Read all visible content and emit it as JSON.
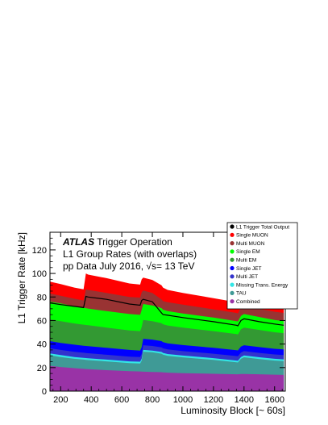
{
  "chart_data": {
    "type": "area",
    "xlabel": "Luminosity Block [~ 60s]",
    "ylabel": "L1 Trigger Rate [kHz]",
    "xlim": [
      130,
      1670
    ],
    "ylim": [
      0,
      135
    ],
    "x_ticks": [
      200,
      400,
      600,
      800,
      1000,
      1200,
      1400,
      1600
    ],
    "y_ticks": [
      0,
      20,
      40,
      60,
      80,
      100,
      120
    ],
    "grid": false,
    "legend_position": "top-right",
    "annotation": {
      "brand": "ATLAS",
      "line1_rest": " Trigger Operation",
      "line2": "L1 Group Rates (with overlaps)",
      "line3": "pp Data July 2016, √s= 13 TeV"
    },
    "x": [
      130,
      200,
      290,
      350,
      365,
      380,
      500,
      650,
      720,
      730,
      740,
      800,
      860,
      870,
      900,
      1000,
      1200,
      1350,
      1360,
      1380,
      1400,
      1500,
      1600,
      1660
    ],
    "series": [
      {
        "name": "Combined",
        "color": "#9933a6",
        "values": [
          21.5,
          20.5,
          19.5,
          18.9,
          18.8,
          18.7,
          17.8,
          16.9,
          16.7,
          16.6,
          16.5,
          16.3,
          16.1,
          16.0,
          15.7,
          15.3,
          14.7,
          14.3,
          14.3,
          14.5,
          14.6,
          14.3,
          14.0,
          13.8
        ]
      },
      {
        "name": "TAU",
        "color": "#3f9a96",
        "values": [
          30.5,
          29.0,
          27.5,
          26.8,
          26.6,
          26.4,
          25.3,
          23.8,
          23.5,
          26.0,
          33.5,
          33.0,
          31.8,
          31.0,
          30.0,
          28.7,
          26.5,
          24.5,
          24.3,
          27.5,
          28.8,
          27.3,
          26.0,
          25.5
        ]
      },
      {
        "name": "Missing Trans. Energy",
        "color": "#33e6e6",
        "values": [
          32.0,
          30.6,
          29.0,
          28.3,
          28.1,
          27.9,
          26.8,
          25.3,
          25.0,
          27.6,
          35.0,
          34.5,
          33.3,
          32.5,
          31.5,
          30.2,
          28.0,
          26.0,
          25.8,
          29.0,
          30.3,
          28.8,
          27.5,
          27.0
        ]
      },
      {
        "name": "Multi JET",
        "color": "#3333cc",
        "values": [
          36.5,
          35.0,
          33.4,
          32.6,
          32.4,
          32.2,
          30.9,
          29.3,
          28.9,
          31.5,
          39.0,
          38.4,
          37.2,
          36.4,
          35.4,
          34.0,
          31.8,
          29.8,
          29.6,
          32.8,
          34.0,
          32.5,
          31.2,
          30.7
        ]
      },
      {
        "name": "Single JET",
        "color": "#0000ff",
        "values": [
          42.5,
          41.0,
          39.5,
          38.6,
          38.4,
          38.2,
          36.8,
          35.0,
          34.5,
          37.3,
          44.5,
          43.8,
          42.5,
          41.6,
          40.6,
          39.1,
          36.8,
          34.8,
          34.6,
          37.8,
          39.0,
          37.4,
          36.0,
          35.5
        ]
      },
      {
        "name": "Multi EM",
        "color": "#339933",
        "values": [
          61.0,
          59.5,
          57.5,
          56.5,
          56.2,
          56.0,
          54.0,
          51.5,
          51.0,
          54.5,
          60.5,
          59.5,
          57.8,
          56.8,
          55.8,
          54.0,
          51.0,
          48.5,
          48.2,
          52.5,
          54.0,
          52.0,
          50.0,
          49.3
        ]
      },
      {
        "name": "Single EM",
        "color": "#00ff00",
        "values": [
          76.0,
          74.5,
          72.0,
          71.0,
          70.5,
          70.2,
          68.0,
          65.5,
          64.8,
          69.0,
          74.0,
          72.8,
          70.5,
          69.2,
          68.0,
          66.0,
          62.5,
          59.5,
          59.2,
          64.0,
          65.5,
          63.0,
          60.5,
          59.5
        ]
      },
      {
        "name": "Multi MUON",
        "color": "#993333",
        "values": [
          83.0,
          81.0,
          78.5,
          77.0,
          86.5,
          86.0,
          83.5,
          80.0,
          79.5,
          84.0,
          85.5,
          83.5,
          78.0,
          76.5,
          75.5,
          73.5,
          69.5,
          66.5,
          66.0,
          71.0,
          72.5,
          70.0,
          67.5,
          66.5
        ]
      },
      {
        "name": "Single MUON",
        "color": "#ff0000",
        "values": [
          93.0,
          91.0,
          88.0,
          86.5,
          100.0,
          99.0,
          96.0,
          91.5,
          90.5,
          95.0,
          96.5,
          94.5,
          90.0,
          88.0,
          86.0,
          83.5,
          79.0,
          75.5,
          75.0,
          80.5,
          82.0,
          78.5,
          75.5,
          74.5
        ]
      },
      {
        "name": "L1 Trigger Total Output",
        "color": "#000000",
        "line": true,
        "values": [
          75.0,
          73.5,
          72.0,
          71.0,
          80.5,
          80.0,
          78.0,
          74.0,
          73.0,
          77.0,
          78.0,
          76.0,
          66.5,
          65.0,
          64.5,
          62.5,
          59.0,
          56.0,
          55.5,
          60.0,
          61.5,
          59.0,
          57.0,
          56.0
        ]
      }
    ],
    "legend": [
      {
        "label": "L1 Trigger Total Output",
        "color": "#000000"
      },
      {
        "label": "Single MUON",
        "color": "#ff0000"
      },
      {
        "label": "Multi MUON",
        "color": "#993333"
      },
      {
        "label": "Single EM",
        "color": "#00ff00"
      },
      {
        "label": "Multi EM",
        "color": "#339933"
      },
      {
        "label": "Single JET",
        "color": "#0000ff"
      },
      {
        "label": "Multi JET",
        "color": "#3333cc"
      },
      {
        "label": "Missing Trans. Energy",
        "color": "#33e6e6"
      },
      {
        "label": "TAU",
        "color": "#3f9a96"
      },
      {
        "label": "Combined",
        "color": "#9933a6"
      }
    ]
  }
}
